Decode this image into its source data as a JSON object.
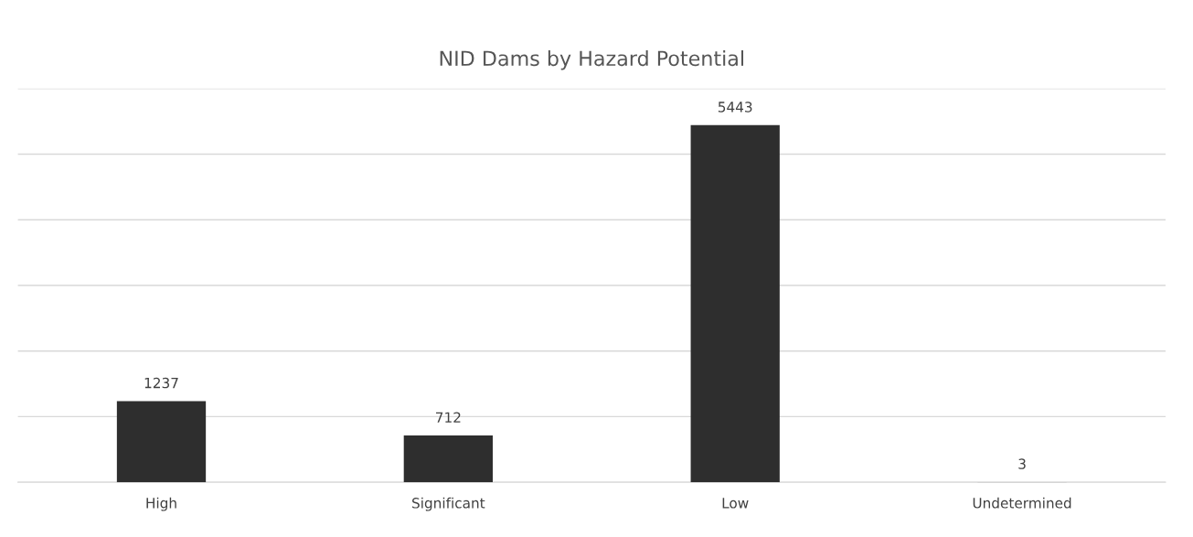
{
  "chart_data": {
    "type": "bar",
    "title": "NID Dams by Hazard Potential",
    "categories": [
      "High",
      "Significant",
      "Low",
      "Undetermined"
    ],
    "values": [
      1237,
      712,
      5443,
      3
    ],
    "color": "#2e2e2e",
    "ylim": [
      0,
      6000
    ],
    "yticks": [
      0,
      1000,
      2000,
      3000,
      4000,
      5000,
      6000
    ],
    "grid": "y",
    "data_labels": true,
    "tick_labels": "x"
  }
}
